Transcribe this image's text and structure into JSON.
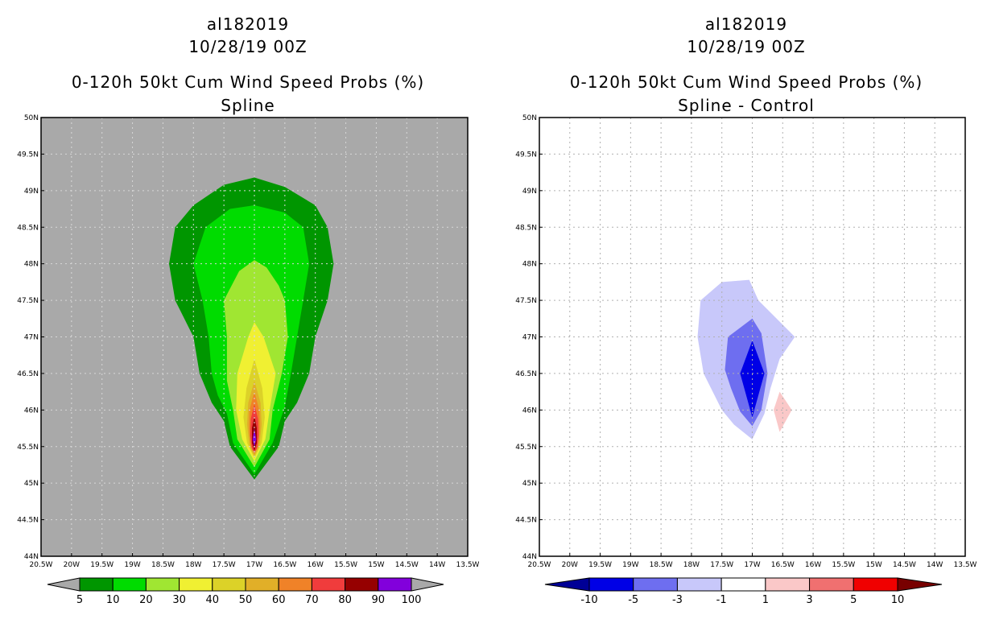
{
  "chart_data": [
    {
      "type": "contour",
      "storm_id": "al182019",
      "datetime": "10/28/19 00Z",
      "title": "0-120h 50kt Cum Wind Speed Probs (%)",
      "subtitle": "Spline",
      "x_ticks": [
        "20.5W",
        "20W",
        "19.5W",
        "19W",
        "18.5W",
        "18W",
        "17.5W",
        "17W",
        "16.5W",
        "16W",
        "15.5W",
        "15W",
        "14.5W",
        "14W",
        "13.5W"
      ],
      "y_ticks": [
        "44N",
        "44.5N",
        "45N",
        "45.5N",
        "46N",
        "46.5N",
        "47N",
        "47.5N",
        "48N",
        "48.5N",
        "49N",
        "49.5N",
        "50N"
      ],
      "xlim": [
        -20.5,
        -13.5
      ],
      "ylim": [
        44,
        50
      ],
      "background_color": "#a9a9a9",
      "colorbar": {
        "labels": [
          "5",
          "10",
          "20",
          "30",
          "40",
          "50",
          "60",
          "70",
          "80",
          "90",
          "100"
        ],
        "colors": [
          "#009600",
          "#00dc00",
          "#a0e632",
          "#f0f032",
          "#dcd228",
          "#e1af28",
          "#f08228",
          "#f03c3c",
          "#960000",
          "#8200dc"
        ],
        "under_color": "#a9a9a9",
        "over_color": "#a9a9a9"
      },
      "contours": [
        {
          "level": 5,
          "color": "#009600",
          "points": [
            [
              -17.0,
              49.18
            ],
            [
              -16.5,
              49.05
            ],
            [
              -16.0,
              48.8
            ],
            [
              -15.8,
              48.5
            ],
            [
              -15.7,
              48.0
            ],
            [
              -15.8,
              47.5
            ],
            [
              -16.0,
              47.0
            ],
            [
              -16.1,
              46.5
            ],
            [
              -16.3,
              46.1
            ],
            [
              -16.5,
              45.85
            ],
            [
              -16.6,
              45.5
            ],
            [
              -17.0,
              45.05
            ],
            [
              -17.4,
              45.5
            ],
            [
              -17.5,
              45.85
            ],
            [
              -17.7,
              46.1
            ],
            [
              -17.9,
              46.5
            ],
            [
              -18.0,
              47.0
            ],
            [
              -18.3,
              47.5
            ],
            [
              -18.4,
              48.0
            ],
            [
              -18.3,
              48.5
            ],
            [
              -18.0,
              48.8
            ],
            [
              -17.5,
              49.08
            ]
          ]
        },
        {
          "level": 10,
          "color": "#00dc00",
          "points": [
            [
              -17.0,
              48.8
            ],
            [
              -16.5,
              48.7
            ],
            [
              -16.2,
              48.5
            ],
            [
              -16.1,
              48.0
            ],
            [
              -16.2,
              47.5
            ],
            [
              -16.3,
              47.0
            ],
            [
              -16.4,
              46.5
            ],
            [
              -16.5,
              46.05
            ],
            [
              -16.7,
              45.55
            ],
            [
              -17.0,
              45.12
            ],
            [
              -17.35,
              45.55
            ],
            [
              -17.45,
              45.95
            ],
            [
              -17.6,
              46.2
            ],
            [
              -17.7,
              46.5
            ],
            [
              -17.75,
              47.0
            ],
            [
              -17.85,
              47.5
            ],
            [
              -18.0,
              48.0
            ],
            [
              -17.8,
              48.5
            ],
            [
              -17.4,
              48.75
            ]
          ]
        },
        {
          "level": 20,
          "color": "#a0e632",
          "points": [
            [
              -17.0,
              48.05
            ],
            [
              -16.8,
              47.95
            ],
            [
              -16.6,
              47.7
            ],
            [
              -16.5,
              47.5
            ],
            [
              -16.45,
              47.0
            ],
            [
              -16.55,
              46.5
            ],
            [
              -16.7,
              46.0
            ],
            [
              -16.75,
              45.6
            ],
            [
              -17.0,
              45.22
            ],
            [
              -17.28,
              45.6
            ],
            [
              -17.35,
              46.0
            ],
            [
              -17.45,
              46.4
            ],
            [
              -17.45,
              47.0
            ],
            [
              -17.5,
              47.5
            ],
            [
              -17.25,
              47.9
            ]
          ]
        },
        {
          "level": 30,
          "color": "#f0f032",
          "points": [
            [
              -17.0,
              47.2
            ],
            [
              -16.85,
              47.0
            ],
            [
              -16.65,
              46.5
            ],
            [
              -16.75,
              46.0
            ],
            [
              -16.82,
              45.6
            ],
            [
              -17.0,
              45.3
            ],
            [
              -17.2,
              45.6
            ],
            [
              -17.3,
              46.0
            ],
            [
              -17.28,
              46.5
            ],
            [
              -17.1,
              47.0
            ]
          ]
        },
        {
          "level": 40,
          "color": "#dcd228",
          "points": [
            [
              -17.0,
              46.7
            ],
            [
              -16.87,
              46.3
            ],
            [
              -16.83,
              45.9
            ],
            [
              -16.88,
              45.55
            ],
            [
              -17.0,
              45.34
            ],
            [
              -17.12,
              45.55
            ],
            [
              -17.18,
              45.9
            ],
            [
              -17.13,
              46.3
            ]
          ]
        },
        {
          "level": 50,
          "color": "#e1af28",
          "points": [
            [
              -17.0,
              46.4
            ],
            [
              -16.9,
              46.1
            ],
            [
              -16.88,
              45.8
            ],
            [
              -16.92,
              45.5
            ],
            [
              -17.0,
              45.37
            ],
            [
              -17.08,
              45.5
            ],
            [
              -17.12,
              45.8
            ],
            [
              -17.1,
              46.1
            ]
          ]
        },
        {
          "level": 60,
          "color": "#f08228",
          "points": [
            [
              -17.0,
              46.25
            ],
            [
              -16.92,
              46.0
            ],
            [
              -16.91,
              45.75
            ],
            [
              -16.94,
              45.5
            ],
            [
              -17.0,
              45.4
            ],
            [
              -17.06,
              45.5
            ],
            [
              -17.09,
              45.75
            ],
            [
              -17.08,
              46.0
            ]
          ]
        },
        {
          "level": 70,
          "color": "#f03c3c",
          "points": [
            [
              -17.0,
              46.08
            ],
            [
              -16.94,
              45.88
            ],
            [
              -16.93,
              45.65
            ],
            [
              -16.96,
              45.47
            ],
            [
              -17.0,
              45.42
            ],
            [
              -17.04,
              45.47
            ],
            [
              -17.07,
              45.65
            ],
            [
              -17.06,
              45.88
            ]
          ]
        },
        {
          "level": 80,
          "color": "#960000",
          "points": [
            [
              -17.0,
              45.92
            ],
            [
              -16.96,
              45.75
            ],
            [
              -16.96,
              45.55
            ],
            [
              -17.0,
              45.44
            ],
            [
              -17.04,
              45.55
            ],
            [
              -17.04,
              45.75
            ]
          ]
        },
        {
          "level": 90,
          "color": "#8200dc",
          "points": [
            [
              -17.0,
              45.75
            ],
            [
              -16.97,
              45.6
            ],
            [
              -17.0,
              45.5
            ],
            [
              -17.03,
              45.6
            ]
          ]
        }
      ]
    },
    {
      "type": "contour",
      "storm_id": "al182019",
      "datetime": "10/28/19 00Z",
      "title": "0-120h 50kt Cum Wind Speed Probs (%)",
      "subtitle": "Spline - Control",
      "x_ticks": [
        "20.5W",
        "20W",
        "19.5W",
        "19W",
        "18.5W",
        "18W",
        "17.5W",
        "17W",
        "16.5W",
        "16W",
        "15.5W",
        "15W",
        "14.5W",
        "14W",
        "13.5W"
      ],
      "y_ticks": [
        "44N",
        "44.5N",
        "45N",
        "45.5N",
        "46N",
        "46.5N",
        "47N",
        "47.5N",
        "48N",
        "48.5N",
        "49N",
        "49.5N",
        "50N"
      ],
      "xlim": [
        -20.5,
        -13.5
      ],
      "ylim": [
        44,
        50
      ],
      "background_color": "#ffffff",
      "colorbar": {
        "labels": [
          "-10",
          "-5",
          "-3",
          "-1",
          "1",
          "3",
          "5",
          "10"
        ],
        "colors": [
          "#0000e6",
          "#6e6ef0",
          "#c8c8fa",
          "#ffffff",
          "#fac8c8",
          "#f07070",
          "#f00000"
        ],
        "under_color": "#000096",
        "over_color": "#780000"
      },
      "contours": [
        {
          "level": -1,
          "color": "#c8c8fa",
          "points": [
            [
              -17.5,
              47.75
            ],
            [
              -17.05,
              47.78
            ],
            [
              -16.9,
              47.5
            ],
            [
              -16.6,
              47.25
            ],
            [
              -16.3,
              47.0
            ],
            [
              -16.55,
              46.7
            ],
            [
              -16.7,
              46.3
            ],
            [
              -16.8,
              45.95
            ],
            [
              -17.0,
              45.6
            ],
            [
              -17.3,
              45.8
            ],
            [
              -17.5,
              46.0
            ],
            [
              -17.8,
              46.5
            ],
            [
              -17.9,
              47.0
            ],
            [
              -17.85,
              47.5
            ]
          ]
        },
        {
          "level": -3,
          "color": "#6e6ef0",
          "points": [
            [
              -17.0,
              47.25
            ],
            [
              -16.85,
              47.05
            ],
            [
              -16.75,
              46.5
            ],
            [
              -16.85,
              46.0
            ],
            [
              -17.0,
              45.78
            ],
            [
              -17.2,
              45.98
            ],
            [
              -17.35,
              46.3
            ],
            [
              -17.45,
              46.55
            ],
            [
              -17.4,
              47.0
            ]
          ]
        },
        {
          "level": -5,
          "color": "#0000e6",
          "points": [
            [
              -17.0,
              46.95
            ],
            [
              -16.8,
              46.5
            ],
            [
              -17.0,
              45.9
            ],
            [
              -17.2,
              46.5
            ]
          ]
        },
        {
          "level": 1,
          "color": "#fac8c8",
          "points": [
            [
              -16.55,
              46.25
            ],
            [
              -16.35,
              46.0
            ],
            [
              -16.55,
              45.7
            ],
            [
              -16.65,
              46.0
            ]
          ]
        }
      ]
    }
  ]
}
